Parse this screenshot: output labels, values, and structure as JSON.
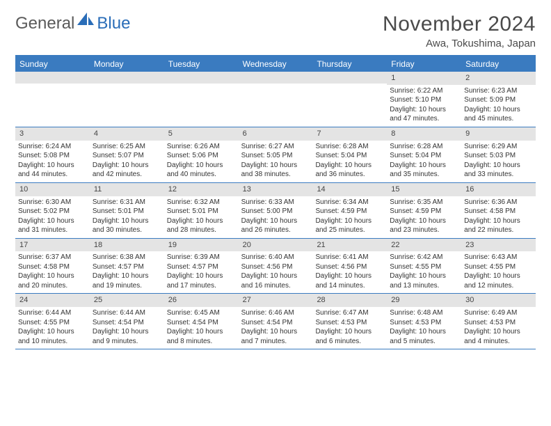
{
  "logo": {
    "general": "General",
    "blue": "Blue"
  },
  "title": "November 2024",
  "location": "Awa, Tokushima, Japan",
  "colors": {
    "header_bg": "#3a7bc0",
    "header_text": "#ffffff",
    "daynum_bg": "#e4e4e4",
    "border": "#3a7bc0",
    "logo_gray": "#5a5a5a",
    "logo_blue": "#2a6db8"
  },
  "weekdays": [
    "Sunday",
    "Monday",
    "Tuesday",
    "Wednesday",
    "Thursday",
    "Friday",
    "Saturday"
  ],
  "weeks": [
    [
      {
        "num": "",
        "sunrise": "",
        "sunset": "",
        "daylight": ""
      },
      {
        "num": "",
        "sunrise": "",
        "sunset": "",
        "daylight": ""
      },
      {
        "num": "",
        "sunrise": "",
        "sunset": "",
        "daylight": ""
      },
      {
        "num": "",
        "sunrise": "",
        "sunset": "",
        "daylight": ""
      },
      {
        "num": "",
        "sunrise": "",
        "sunset": "",
        "daylight": ""
      },
      {
        "num": "1",
        "sunrise": "Sunrise: 6:22 AM",
        "sunset": "Sunset: 5:10 PM",
        "daylight": "Daylight: 10 hours and 47 minutes."
      },
      {
        "num": "2",
        "sunrise": "Sunrise: 6:23 AM",
        "sunset": "Sunset: 5:09 PM",
        "daylight": "Daylight: 10 hours and 45 minutes."
      }
    ],
    [
      {
        "num": "3",
        "sunrise": "Sunrise: 6:24 AM",
        "sunset": "Sunset: 5:08 PM",
        "daylight": "Daylight: 10 hours and 44 minutes."
      },
      {
        "num": "4",
        "sunrise": "Sunrise: 6:25 AM",
        "sunset": "Sunset: 5:07 PM",
        "daylight": "Daylight: 10 hours and 42 minutes."
      },
      {
        "num": "5",
        "sunrise": "Sunrise: 6:26 AM",
        "sunset": "Sunset: 5:06 PM",
        "daylight": "Daylight: 10 hours and 40 minutes."
      },
      {
        "num": "6",
        "sunrise": "Sunrise: 6:27 AM",
        "sunset": "Sunset: 5:05 PM",
        "daylight": "Daylight: 10 hours and 38 minutes."
      },
      {
        "num": "7",
        "sunrise": "Sunrise: 6:28 AM",
        "sunset": "Sunset: 5:04 PM",
        "daylight": "Daylight: 10 hours and 36 minutes."
      },
      {
        "num": "8",
        "sunrise": "Sunrise: 6:28 AM",
        "sunset": "Sunset: 5:04 PM",
        "daylight": "Daylight: 10 hours and 35 minutes."
      },
      {
        "num": "9",
        "sunrise": "Sunrise: 6:29 AM",
        "sunset": "Sunset: 5:03 PM",
        "daylight": "Daylight: 10 hours and 33 minutes."
      }
    ],
    [
      {
        "num": "10",
        "sunrise": "Sunrise: 6:30 AM",
        "sunset": "Sunset: 5:02 PM",
        "daylight": "Daylight: 10 hours and 31 minutes."
      },
      {
        "num": "11",
        "sunrise": "Sunrise: 6:31 AM",
        "sunset": "Sunset: 5:01 PM",
        "daylight": "Daylight: 10 hours and 30 minutes."
      },
      {
        "num": "12",
        "sunrise": "Sunrise: 6:32 AM",
        "sunset": "Sunset: 5:01 PM",
        "daylight": "Daylight: 10 hours and 28 minutes."
      },
      {
        "num": "13",
        "sunrise": "Sunrise: 6:33 AM",
        "sunset": "Sunset: 5:00 PM",
        "daylight": "Daylight: 10 hours and 26 minutes."
      },
      {
        "num": "14",
        "sunrise": "Sunrise: 6:34 AM",
        "sunset": "Sunset: 4:59 PM",
        "daylight": "Daylight: 10 hours and 25 minutes."
      },
      {
        "num": "15",
        "sunrise": "Sunrise: 6:35 AM",
        "sunset": "Sunset: 4:59 PM",
        "daylight": "Daylight: 10 hours and 23 minutes."
      },
      {
        "num": "16",
        "sunrise": "Sunrise: 6:36 AM",
        "sunset": "Sunset: 4:58 PM",
        "daylight": "Daylight: 10 hours and 22 minutes."
      }
    ],
    [
      {
        "num": "17",
        "sunrise": "Sunrise: 6:37 AM",
        "sunset": "Sunset: 4:58 PM",
        "daylight": "Daylight: 10 hours and 20 minutes."
      },
      {
        "num": "18",
        "sunrise": "Sunrise: 6:38 AM",
        "sunset": "Sunset: 4:57 PM",
        "daylight": "Daylight: 10 hours and 19 minutes."
      },
      {
        "num": "19",
        "sunrise": "Sunrise: 6:39 AM",
        "sunset": "Sunset: 4:57 PM",
        "daylight": "Daylight: 10 hours and 17 minutes."
      },
      {
        "num": "20",
        "sunrise": "Sunrise: 6:40 AM",
        "sunset": "Sunset: 4:56 PM",
        "daylight": "Daylight: 10 hours and 16 minutes."
      },
      {
        "num": "21",
        "sunrise": "Sunrise: 6:41 AM",
        "sunset": "Sunset: 4:56 PM",
        "daylight": "Daylight: 10 hours and 14 minutes."
      },
      {
        "num": "22",
        "sunrise": "Sunrise: 6:42 AM",
        "sunset": "Sunset: 4:55 PM",
        "daylight": "Daylight: 10 hours and 13 minutes."
      },
      {
        "num": "23",
        "sunrise": "Sunrise: 6:43 AM",
        "sunset": "Sunset: 4:55 PM",
        "daylight": "Daylight: 10 hours and 12 minutes."
      }
    ],
    [
      {
        "num": "24",
        "sunrise": "Sunrise: 6:44 AM",
        "sunset": "Sunset: 4:55 PM",
        "daylight": "Daylight: 10 hours and 10 minutes."
      },
      {
        "num": "25",
        "sunrise": "Sunrise: 6:44 AM",
        "sunset": "Sunset: 4:54 PM",
        "daylight": "Daylight: 10 hours and 9 minutes."
      },
      {
        "num": "26",
        "sunrise": "Sunrise: 6:45 AM",
        "sunset": "Sunset: 4:54 PM",
        "daylight": "Daylight: 10 hours and 8 minutes."
      },
      {
        "num": "27",
        "sunrise": "Sunrise: 6:46 AM",
        "sunset": "Sunset: 4:54 PM",
        "daylight": "Daylight: 10 hours and 7 minutes."
      },
      {
        "num": "28",
        "sunrise": "Sunrise: 6:47 AM",
        "sunset": "Sunset: 4:53 PM",
        "daylight": "Daylight: 10 hours and 6 minutes."
      },
      {
        "num": "29",
        "sunrise": "Sunrise: 6:48 AM",
        "sunset": "Sunset: 4:53 PM",
        "daylight": "Daylight: 10 hours and 5 minutes."
      },
      {
        "num": "30",
        "sunrise": "Sunrise: 6:49 AM",
        "sunset": "Sunset: 4:53 PM",
        "daylight": "Daylight: 10 hours and 4 minutes."
      }
    ]
  ]
}
